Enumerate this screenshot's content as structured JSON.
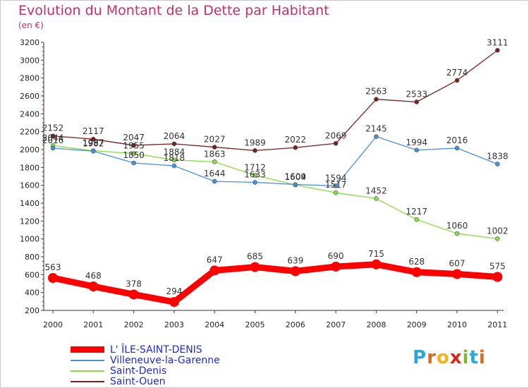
{
  "chart_data": {
    "type": "line",
    "title": "Evolution du Montant de la Dette par Habitant",
    "subtitle": "(en €)",
    "x": [
      "2000",
      "2001",
      "2002",
      "2003",
      "2004",
      "2005",
      "2006",
      "2007",
      "2008",
      "2009",
      "2010",
      "2011"
    ],
    "yticks": [
      200,
      400,
      600,
      800,
      1000,
      1200,
      1400,
      1600,
      1800,
      2000,
      2200,
      2400,
      2600,
      2800,
      3000,
      3200
    ],
    "ylim": [
      200,
      3200
    ],
    "grid": false,
    "legend_placement": "bottom-left",
    "series": [
      {
        "name": "L' ÎLE-SAINT-DENIS",
        "color": "#ff0000",
        "values": [
          563,
          468,
          378,
          294,
          647,
          685,
          639,
          690,
          715,
          628,
          607,
          575
        ]
      },
      {
        "name": "Villeneuve-la-Garenne",
        "color": "#4a90d9",
        "values": [
          2016,
          1982,
          1850,
          1818,
          1644,
          1633,
          1609,
          1594,
          2145,
          1994,
          2016,
          1838
        ]
      },
      {
        "name": "Saint-Denis",
        "color": "#88dd44",
        "values": [
          2044,
          1987,
          1955,
          1884,
          1863,
          1712,
          1604,
          1517,
          1452,
          1217,
          1060,
          1002
        ]
      },
      {
        "name": "Saint-Ouen",
        "color": "#7a1e1e",
        "values": [
          2152,
          2117,
          2047,
          2064,
          2027,
          1989,
          2022,
          2069,
          2563,
          2533,
          2774,
          3111
        ]
      }
    ]
  },
  "legend": {
    "items": [
      "L' ÎLE-SAINT-DENIS",
      "Villeneuve-la-Garenne",
      "Saint-Denis",
      "Saint-Ouen"
    ]
  },
  "logo": {
    "text": "Proxiti",
    "colors": [
      "#2aa7d8",
      "#e06a1c",
      "#f2b31d",
      "#e2231a",
      "#7ab830",
      "#2aa7d8",
      "#e06a1c"
    ]
  }
}
